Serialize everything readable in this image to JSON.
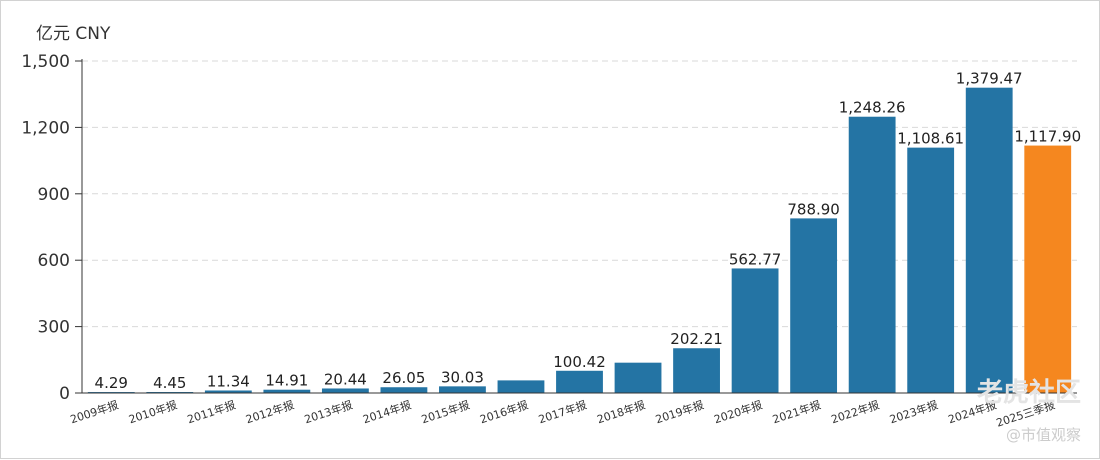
{
  "chart_data": {
    "type": "bar",
    "unit_label": "亿元 CNY",
    "categories": [
      "2009年报",
      "2010年报",
      "2011年报",
      "2012年报",
      "2013年报",
      "2014年报",
      "2015年报",
      "2016年报",
      "2017年报",
      "2018年报",
      "2019年报",
      "2020年报",
      "2021年报",
      "2022年报",
      "2023年报",
      "2024年报",
      "2025三季报"
    ],
    "values": [
      4.29,
      4.45,
      11.34,
      14.91,
      20.44,
      26.05,
      30.03,
      57,
      100.42,
      137,
      202.21,
      562.77,
      788.9,
      1248.26,
      1108.61,
      1379.47,
      1117.9
    ],
    "value_labels": [
      "4.29",
      "4.45",
      "11.34",
      "14.91",
      "20.44",
      "26.05",
      "30.03",
      "",
      "100.42",
      "",
      "202.21",
      "562.77",
      "788.90",
      "1,248.26",
      "1,108.61",
      "1,379.47",
      "1,117.90"
    ],
    "highlight_index": 16,
    "ylim": [
      0,
      1500
    ],
    "yticks": [
      0,
      300,
      600,
      900,
      1200,
      1500
    ],
    "ytick_labels": [
      "0",
      "300",
      "600",
      "900",
      "1,200",
      "1,500"
    ],
    "grid": true,
    "bar_color": "#2474a4",
    "highlight_color": "#f5871f",
    "grid_color": "#d9d9d9"
  },
  "watermark": {
    "main": "老虎社区",
    "sub": "@市值观察"
  }
}
